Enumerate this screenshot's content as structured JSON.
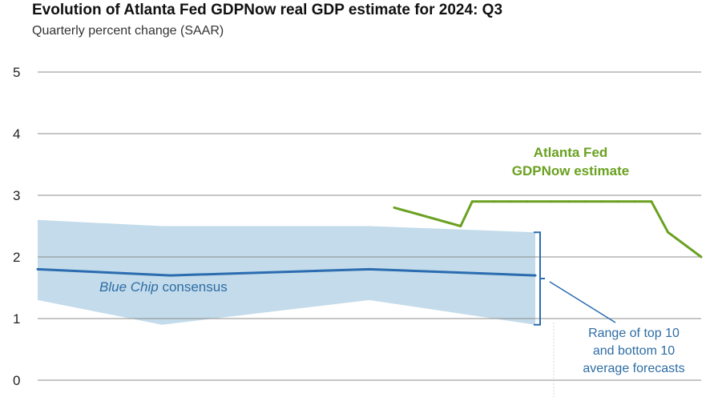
{
  "chart_data": {
    "type": "line",
    "title": "Evolution of Atlanta Fed GDPNow real GDP estimate for 2024: Q3",
    "subtitle": "Quarterly percent change (SAAR)",
    "ylim": [
      0,
      5
    ],
    "yticks": [
      "0",
      "1",
      "2",
      "3",
      "4",
      "5"
    ],
    "x": [
      0,
      1,
      2,
      3,
      4,
      5,
      6,
      7,
      8,
      9,
      10,
      11,
      12,
      13,
      14,
      15,
      16,
      17,
      18,
      19,
      20,
      21,
      22,
      23,
      24,
      25,
      26,
      27,
      28,
      29,
      30,
      31,
      32,
      33,
      34,
      35,
      36,
      37,
      38,
      39,
      40
    ],
    "series": [
      {
        "name": "Blue Chip consensus",
        "name_italic": "Blue Chip",
        "name_rest": " consensus",
        "color": "#2b6cb0",
        "x": [
          0,
          8,
          20,
          30
        ],
        "values": [
          1.8,
          1.7,
          1.8,
          1.7
        ]
      },
      {
        "name": "Atlanta Fed GDPNow estimate",
        "label_line1": "Atlanta Fed",
        "label_line2": "GDPNow estimate",
        "color": "#6aa121",
        "x": [
          21.5,
          25.5,
          26.2,
          27.5,
          28.5,
          29.5,
          31,
          32,
          33,
          34,
          35,
          36,
          37,
          38,
          39,
          40
        ],
        "values": [
          2.8,
          2.5,
          2.9,
          2.9,
          2.9,
          2.9,
          2.9,
          2.9,
          2.9,
          2.9,
          2.9,
          2.9,
          2.9,
          2.4,
          2.2,
          2.0
        ]
      }
    ],
    "range_band": {
      "name": "Range of top 10 and bottom 10 average forecasts",
      "label_lines": [
        "Range of top 10",
        "and bottom 10",
        "average forecasts"
      ],
      "color": "#c3dbea",
      "x": [
        0,
        7.5,
        20,
        30
      ],
      "upper": [
        2.6,
        2.5,
        2.5,
        2.4
      ],
      "lower": [
        1.3,
        0.9,
        1.3,
        0.9
      ]
    }
  }
}
